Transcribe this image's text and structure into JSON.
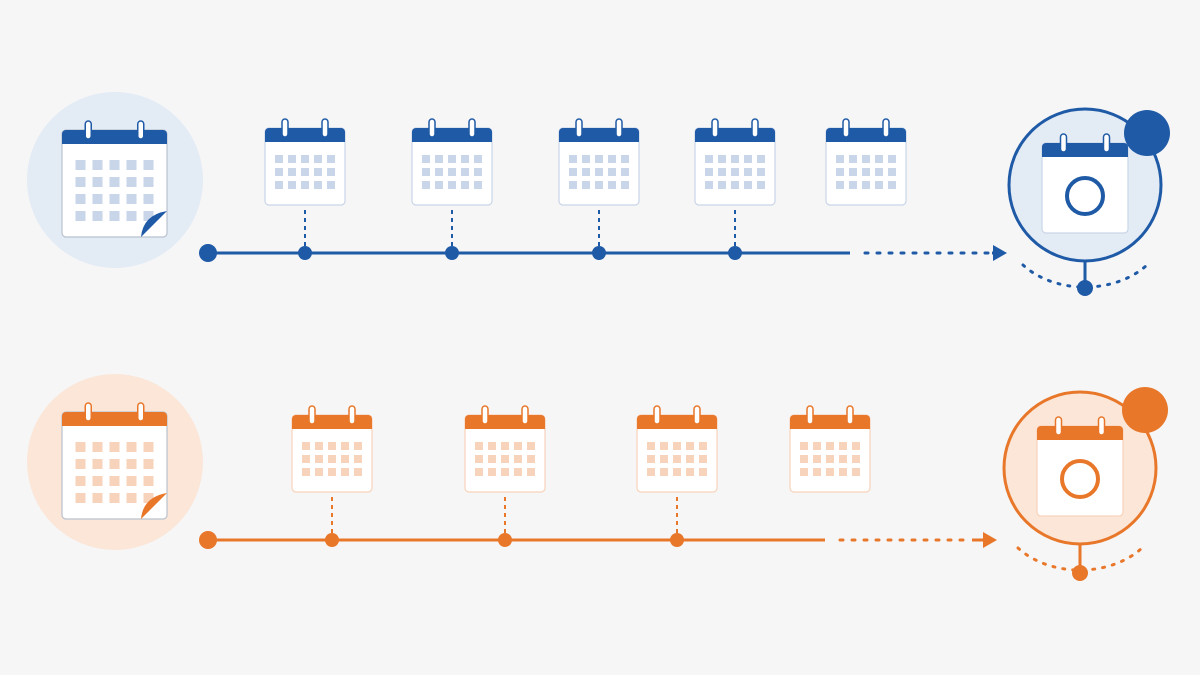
{
  "timelines": [
    {
      "color": "#1f5aa6",
      "tint": "#e3ebf5",
      "cell": "#c9d5e8",
      "calendars": 5
    },
    {
      "color": "#e8772a",
      "tint": "#fbe6d8",
      "cell": "#f8d3bb",
      "calendars": 4
    }
  ]
}
